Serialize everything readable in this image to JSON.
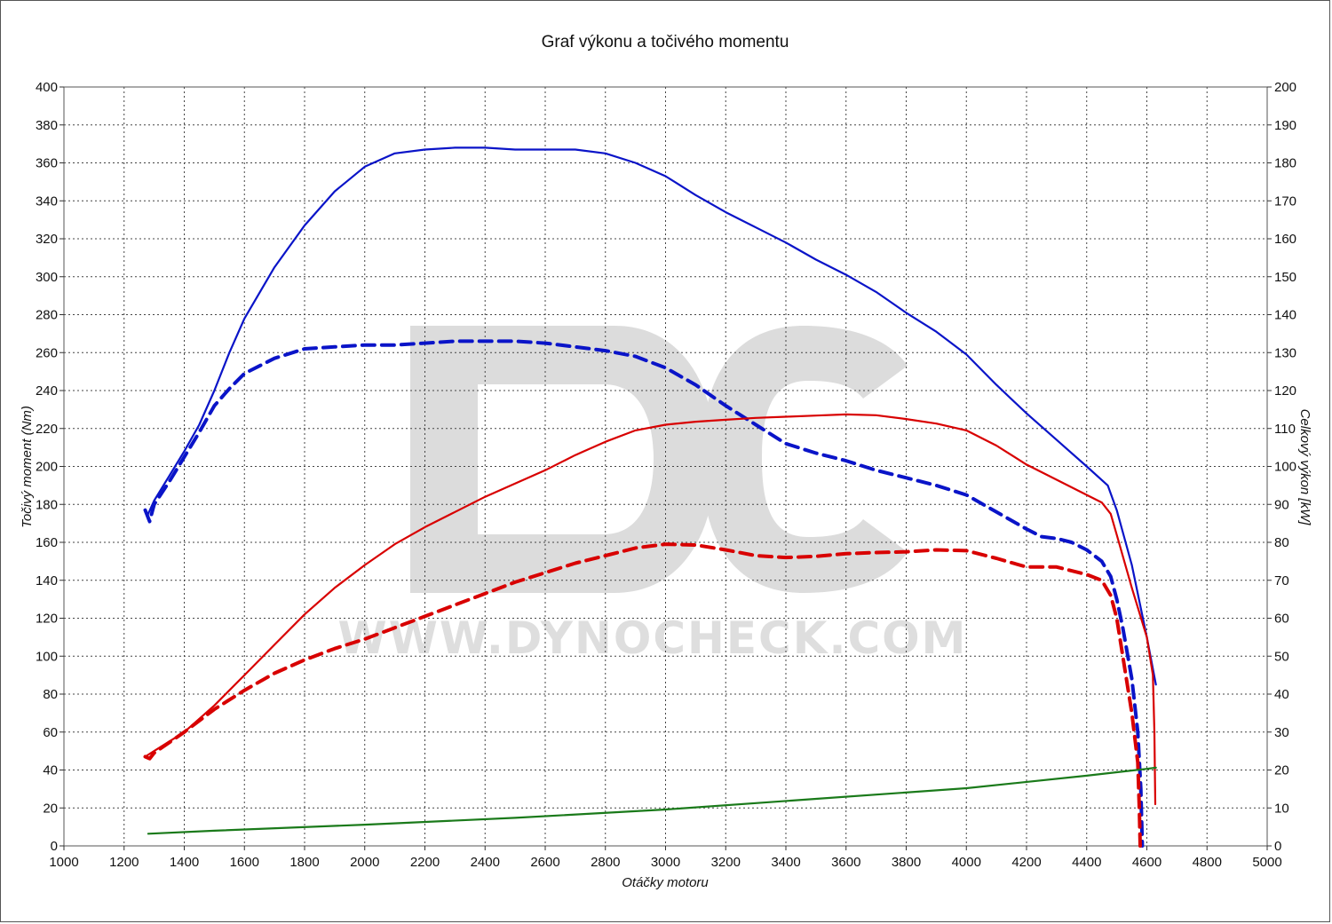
{
  "chart_data": {
    "type": "line",
    "title": "Graf výkonu a točivého momentu",
    "xlabel": "Otáčky motoru",
    "ylabel_left": "Točivý moment (Nm)",
    "ylabel_right": "Celkový výkon [kW]",
    "xlim": [
      1000,
      5000
    ],
    "ylim_left": [
      0,
      400
    ],
    "ylim_right": [
      0,
      200
    ],
    "x_ticks": [
      1000,
      1200,
      1400,
      1600,
      1800,
      2000,
      2200,
      2400,
      2600,
      2800,
      3000,
      3200,
      3400,
      3600,
      3800,
      4000,
      4200,
      4400,
      4600,
      4800,
      5000
    ],
    "y_ticks_left": [
      0,
      20,
      40,
      60,
      80,
      100,
      120,
      140,
      160,
      180,
      200,
      220,
      240,
      260,
      280,
      300,
      320,
      340,
      360,
      380,
      400
    ],
    "y_ticks_right": [
      0,
      10,
      20,
      30,
      40,
      50,
      60,
      70,
      80,
      90,
      100,
      110,
      120,
      130,
      140,
      150,
      160,
      170,
      180,
      190,
      200
    ],
    "grid": true,
    "watermark": {
      "logo": "DC",
      "text": "WWW.DYNOCHECK.COM"
    },
    "series": [
      {
        "key": "torque_tuned",
        "axis": "left",
        "color": "#0a14c8",
        "dash": false,
        "points": [
          [
            1280,
            175
          ],
          [
            1300,
            182
          ],
          [
            1350,
            195
          ],
          [
            1400,
            208
          ],
          [
            1450,
            222
          ],
          [
            1500,
            240
          ],
          [
            1550,
            260
          ],
          [
            1600,
            278
          ],
          [
            1700,
            305
          ],
          [
            1800,
            327
          ],
          [
            1900,
            345
          ],
          [
            2000,
            358
          ],
          [
            2100,
            365
          ],
          [
            2200,
            367
          ],
          [
            2300,
            368
          ],
          [
            2400,
            368
          ],
          [
            2500,
            367
          ],
          [
            2600,
            367
          ],
          [
            2700,
            367
          ],
          [
            2800,
            365
          ],
          [
            2900,
            360
          ],
          [
            3000,
            353
          ],
          [
            3100,
            343
          ],
          [
            3200,
            334
          ],
          [
            3300,
            326
          ],
          [
            3400,
            318
          ],
          [
            3500,
            309
          ],
          [
            3600,
            301
          ],
          [
            3700,
            292
          ],
          [
            3800,
            281
          ],
          [
            3900,
            271
          ],
          [
            4000,
            259
          ],
          [
            4100,
            243
          ],
          [
            4200,
            228
          ],
          [
            4300,
            214
          ],
          [
            4400,
            200
          ],
          [
            4470,
            190
          ],
          [
            4500,
            177
          ],
          [
            4550,
            148
          ],
          [
            4600,
            110
          ],
          [
            4630,
            85
          ]
        ]
      },
      {
        "key": "torque_stock",
        "axis": "left",
        "color": "#0a14c8",
        "dash": true,
        "points": [
          [
            1270,
            177
          ],
          [
            1285,
            171
          ],
          [
            1300,
            180
          ],
          [
            1350,
            192
          ],
          [
            1400,
            205
          ],
          [
            1450,
            218
          ],
          [
            1500,
            232
          ],
          [
            1550,
            241
          ],
          [
            1600,
            249
          ],
          [
            1700,
            257
          ],
          [
            1800,
            262
          ],
          [
            1900,
            263
          ],
          [
            2000,
            264
          ],
          [
            2100,
            264
          ],
          [
            2200,
            265
          ],
          [
            2300,
            266
          ],
          [
            2400,
            266
          ],
          [
            2500,
            266
          ],
          [
            2600,
            265
          ],
          [
            2700,
            263
          ],
          [
            2800,
            261
          ],
          [
            2900,
            258
          ],
          [
            3000,
            252
          ],
          [
            3100,
            243
          ],
          [
            3200,
            232
          ],
          [
            3300,
            222
          ],
          [
            3400,
            212
          ],
          [
            3500,
            207
          ],
          [
            3600,
            203
          ],
          [
            3700,
            198
          ],
          [
            3800,
            194
          ],
          [
            3900,
            190
          ],
          [
            4000,
            185
          ],
          [
            4100,
            176
          ],
          [
            4200,
            167
          ],
          [
            4250,
            163
          ],
          [
            4300,
            162
          ],
          [
            4350,
            160
          ],
          [
            4400,
            156
          ],
          [
            4450,
            150
          ],
          [
            4480,
            142
          ],
          [
            4500,
            130
          ],
          [
            4520,
            115
          ],
          [
            4550,
            88
          ],
          [
            4570,
            60
          ],
          [
            4580,
            30
          ],
          [
            4585,
            0
          ]
        ]
      },
      {
        "key": "power_tuned",
        "axis": "right",
        "color": "#d80000",
        "dash": false,
        "points": [
          [
            1270,
            23.5
          ],
          [
            1300,
            25
          ],
          [
            1400,
            30
          ],
          [
            1500,
            37
          ],
          [
            1600,
            45
          ],
          [
            1700,
            53
          ],
          [
            1800,
            61
          ],
          [
            1900,
            68
          ],
          [
            2000,
            74
          ],
          [
            2100,
            79.5
          ],
          [
            2200,
            84
          ],
          [
            2300,
            88
          ],
          [
            2400,
            92
          ],
          [
            2500,
            95.5
          ],
          [
            2600,
            99
          ],
          [
            2700,
            103
          ],
          [
            2800,
            106.5
          ],
          [
            2900,
            109.5
          ],
          [
            3000,
            111
          ],
          [
            3100,
            111.8
          ],
          [
            3200,
            112.3
          ],
          [
            3300,
            112.8
          ],
          [
            3400,
            113.1
          ],
          [
            3500,
            113.4
          ],
          [
            3600,
            113.7
          ],
          [
            3700,
            113.5
          ],
          [
            3800,
            112.5
          ],
          [
            3900,
            111.3
          ],
          [
            4000,
            109.5
          ],
          [
            4100,
            105.5
          ],
          [
            4200,
            100.5
          ],
          [
            4300,
            96.5
          ],
          [
            4400,
            92.5
          ],
          [
            4450,
            90.5
          ],
          [
            4480,
            87.5
          ],
          [
            4500,
            82
          ],
          [
            4550,
            68
          ],
          [
            4600,
            55
          ],
          [
            4620,
            45
          ],
          [
            4625,
            30
          ],
          [
            4628,
            11
          ]
        ]
      },
      {
        "key": "power_stock",
        "axis": "right",
        "color": "#d80000",
        "dash": true,
        "points": [
          [
            1270,
            23.5
          ],
          [
            1285,
            23
          ],
          [
            1300,
            24.5
          ],
          [
            1400,
            30
          ],
          [
            1500,
            36
          ],
          [
            1600,
            41
          ],
          [
            1700,
            45.5
          ],
          [
            1800,
            49
          ],
          [
            1900,
            52
          ],
          [
            2000,
            54.5
          ],
          [
            2100,
            57.5
          ],
          [
            2200,
            60.5
          ],
          [
            2300,
            63.5
          ],
          [
            2400,
            66.5
          ],
          [
            2500,
            69.5
          ],
          [
            2600,
            72
          ],
          [
            2700,
            74.5
          ],
          [
            2800,
            76.5
          ],
          [
            2900,
            78.5
          ],
          [
            3000,
            79.5
          ],
          [
            3100,
            79.3
          ],
          [
            3200,
            78
          ],
          [
            3300,
            76.5
          ],
          [
            3400,
            76
          ],
          [
            3500,
            76.3
          ],
          [
            3600,
            77
          ],
          [
            3700,
            77.3
          ],
          [
            3800,
            77.5
          ],
          [
            3900,
            78
          ],
          [
            4000,
            77.8
          ],
          [
            4100,
            75.8
          ],
          [
            4200,
            73.5
          ],
          [
            4300,
            73.5
          ],
          [
            4400,
            71.5
          ],
          [
            4450,
            70
          ],
          [
            4480,
            66
          ],
          [
            4500,
            60
          ],
          [
            4520,
            50
          ],
          [
            4550,
            35
          ],
          [
            4570,
            22
          ],
          [
            4575,
            10
          ],
          [
            4578,
            0
          ]
        ]
      },
      {
        "key": "losses",
        "axis": "right",
        "color": "#1a7a1a",
        "dash": false,
        "points": [
          [
            1280,
            3.2
          ],
          [
            1500,
            4.0
          ],
          [
            2000,
            5.6
          ],
          [
            2500,
            7.4
          ],
          [
            3000,
            9.6
          ],
          [
            3500,
            12.4
          ],
          [
            4000,
            15.2
          ],
          [
            4400,
            18.5
          ],
          [
            4600,
            20.3
          ],
          [
            4630,
            20.6
          ]
        ]
      }
    ]
  }
}
